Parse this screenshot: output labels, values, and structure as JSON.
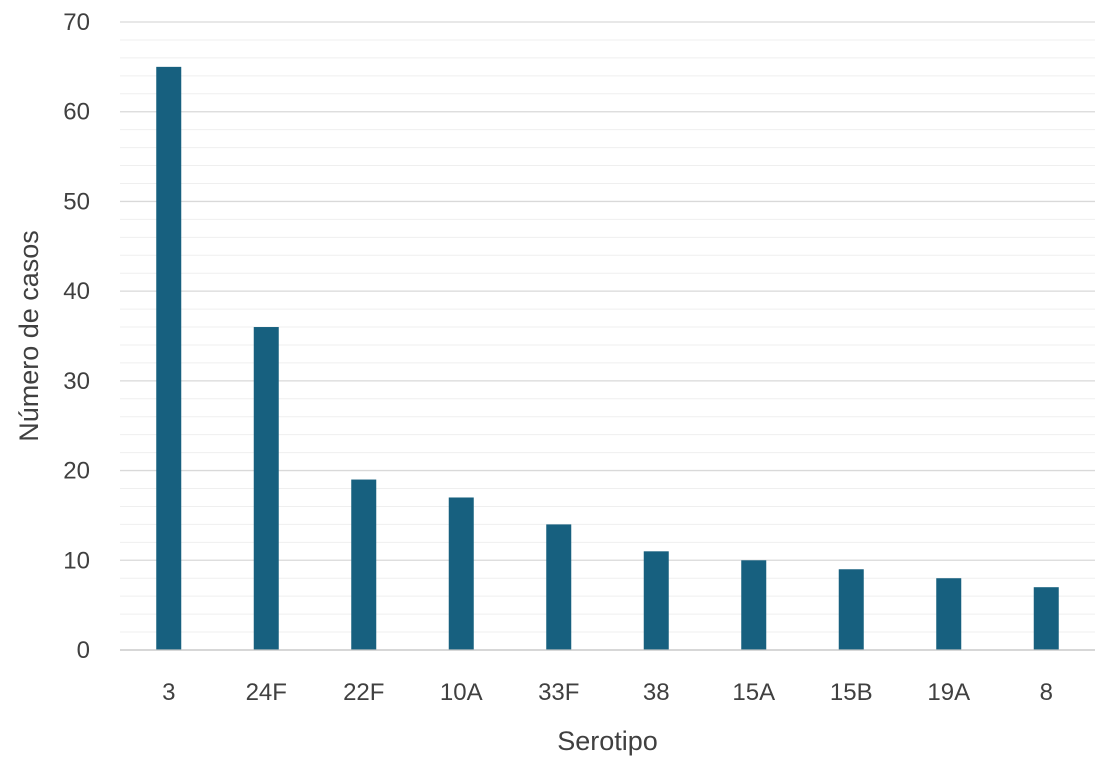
{
  "chart_data": {
    "type": "bar",
    "categories": [
      "3",
      "24F",
      "22F",
      "10A",
      "33F",
      "38",
      "15A",
      "15B",
      "19A",
      "8"
    ],
    "values": [
      65,
      36,
      19,
      17,
      14,
      11,
      10,
      9,
      8,
      7
    ],
    "xlabel": "Serotipo",
    "ylabel": "Número de casos",
    "ylim": [
      0,
      70
    ],
    "y_major_ticks": [
      0,
      10,
      20,
      30,
      40,
      50,
      60,
      70
    ],
    "y_minor_step": 2,
    "grid": true,
    "legend": "none",
    "bar_color": "#17607f"
  }
}
